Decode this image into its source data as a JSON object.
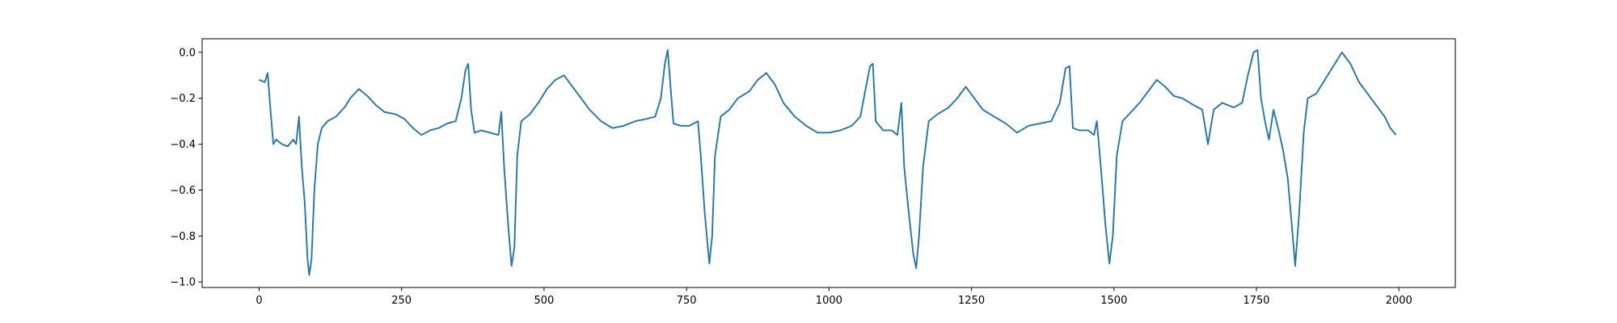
{
  "chart_data": {
    "type": "line",
    "color": "#1f77b4",
    "x": [
      0,
      10,
      15,
      20,
      25,
      30,
      40,
      50,
      60,
      65,
      70,
      75,
      80,
      85,
      88,
      92,
      97,
      103,
      110,
      120,
      135,
      150,
      160,
      175,
      190,
      205,
      220,
      240,
      255,
      270,
      285,
      300,
      315,
      330,
      345,
      355,
      362,
      367,
      372,
      378,
      390,
      405,
      420,
      425,
      430,
      437,
      443,
      448,
      453,
      460,
      475,
      490,
      505,
      520,
      535,
      550,
      565,
      580,
      600,
      620,
      640,
      660,
      680,
      695,
      705,
      712,
      717,
      722,
      727,
      740,
      755,
      770,
      775,
      782,
      790,
      795,
      800,
      810,
      825,
      840,
      860,
      875,
      890,
      905,
      920,
      940,
      960,
      980,
      1000,
      1020,
      1040,
      1055,
      1065,
      1072,
      1077,
      1082,
      1095,
      1110,
      1120,
      1127,
      1132,
      1140,
      1148,
      1153,
      1158,
      1165,
      1175,
      1190,
      1210,
      1225,
      1240,
      1255,
      1270,
      1290,
      1310,
      1330,
      1350,
      1370,
      1390,
      1405,
      1415,
      1422,
      1428,
      1440,
      1455,
      1465,
      1470,
      1477,
      1485,
      1492,
      1498,
      1505,
      1515,
      1530,
      1545,
      1560,
      1575,
      1590,
      1605,
      1620,
      1640,
      1655,
      1665,
      1675,
      1690,
      1710,
      1725,
      1735,
      1745,
      1752,
      1758,
      1765,
      1772,
      1780,
      1790,
      1797,
      1805,
      1812,
      1818,
      1825,
      1833,
      1840,
      1855,
      1870,
      1885,
      1900,
      1915,
      1930,
      1945,
      1960,
      1975,
      1985,
      1995
    ],
    "values": [
      -0.12,
      -0.13,
      -0.09,
      -0.25,
      -0.4,
      -0.38,
      -0.4,
      -0.41,
      -0.38,
      -0.4,
      -0.28,
      -0.5,
      -0.65,
      -0.9,
      -0.97,
      -0.9,
      -0.6,
      -0.4,
      -0.33,
      -0.3,
      -0.28,
      -0.24,
      -0.2,
      -0.16,
      -0.19,
      -0.23,
      -0.26,
      -0.27,
      -0.29,
      -0.33,
      -0.36,
      -0.34,
      -0.33,
      -0.31,
      -0.3,
      -0.2,
      -0.08,
      -0.05,
      -0.25,
      -0.35,
      -0.34,
      -0.35,
      -0.36,
      -0.26,
      -0.5,
      -0.75,
      -0.93,
      -0.85,
      -0.45,
      -0.3,
      -0.27,
      -0.22,
      -0.16,
      -0.12,
      -0.1,
      -0.15,
      -0.2,
      -0.25,
      -0.3,
      -0.33,
      -0.32,
      -0.3,
      -0.29,
      -0.28,
      -0.2,
      -0.05,
      0.01,
      -0.15,
      -0.31,
      -0.32,
      -0.32,
      -0.3,
      -0.45,
      -0.7,
      -0.92,
      -0.8,
      -0.45,
      -0.28,
      -0.25,
      -0.2,
      -0.17,
      -0.12,
      -0.09,
      -0.14,
      -0.22,
      -0.28,
      -0.32,
      -0.35,
      -0.35,
      -0.34,
      -0.32,
      -0.28,
      -0.15,
      -0.06,
      -0.05,
      -0.3,
      -0.34,
      -0.34,
      -0.36,
      -0.22,
      -0.5,
      -0.7,
      -0.88,
      -0.94,
      -0.8,
      -0.5,
      -0.3,
      -0.27,
      -0.24,
      -0.2,
      -0.15,
      -0.2,
      -0.25,
      -0.28,
      -0.31,
      -0.35,
      -0.32,
      -0.31,
      -0.3,
      -0.22,
      -0.07,
      -0.06,
      -0.33,
      -0.34,
      -0.34,
      -0.36,
      -0.3,
      -0.5,
      -0.75,
      -0.92,
      -0.8,
      -0.45,
      -0.3,
      -0.26,
      -0.22,
      -0.17,
      -0.12,
      -0.15,
      -0.19,
      -0.2,
      -0.23,
      -0.25,
      -0.4,
      -0.25,
      -0.22,
      -0.24,
      -0.22,
      -0.1,
      0.0,
      0.01,
      -0.2,
      -0.3,
      -0.38,
      -0.25,
      -0.35,
      -0.43,
      -0.55,
      -0.75,
      -0.93,
      -0.7,
      -0.35,
      -0.2,
      -0.18,
      -0.12,
      -0.06,
      0.0,
      -0.05,
      -0.13,
      -0.18,
      -0.23,
      -0.28,
      -0.33,
      -0.36
    ],
    "xlim": [
      -99.95,
      2098.95
    ],
    "xticks": [
      0,
      250,
      500,
      750,
      1000,
      1250,
      1500,
      1750,
      2000
    ],
    "ylim": [
      -1.024,
      0.059
    ],
    "yticks": [
      {
        "value": -1.0,
        "label": "−1.0"
      },
      {
        "value": -0.8,
        "label": "−0.8"
      },
      {
        "value": -0.6,
        "label": "−0.6"
      },
      {
        "value": -0.4,
        "label": "−0.4"
      },
      {
        "value": -0.2,
        "label": "−0.2"
      },
      {
        "value": 0.0,
        "label": "0.0"
      }
    ]
  }
}
